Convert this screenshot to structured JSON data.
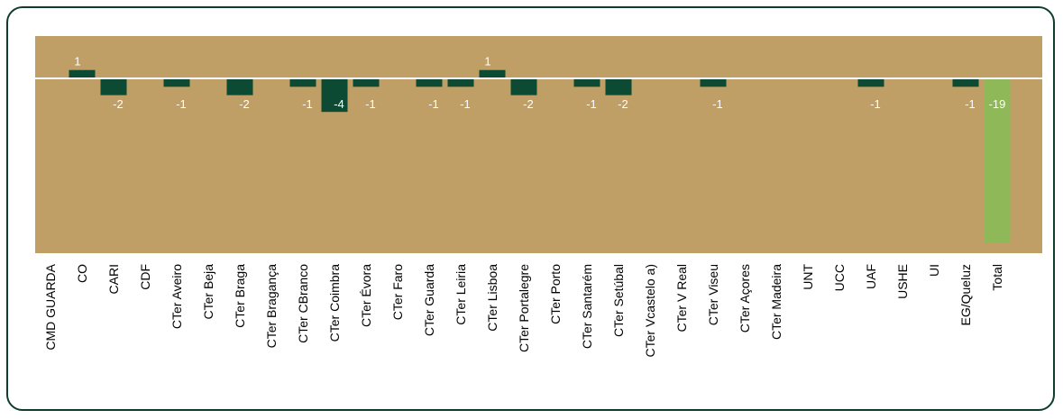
{
  "chart_data": {
    "type": "bar",
    "title": "",
    "xlabel": "",
    "ylabel": "",
    "ylim": [
      -19,
      1
    ],
    "grid": false,
    "legend": "none",
    "categories": [
      "CMD GUARDA",
      "CO",
      "CARI",
      "CDF",
      "CTer Aveiro",
      "CTer Beja",
      "CTer Braga",
      "CTer Bragança",
      "CTer CBranco",
      "CTer Coimbra",
      "CTer Évora",
      "CTer Faro",
      "CTer Guarda",
      "CTer Leiria",
      "CTer Lisboa",
      "CTer Portalegre",
      "CTer Porto",
      "CTer Santarém",
      "CTer Setúbal",
      "CTer Vcastelo a)",
      "CTer V Real",
      "CTer Viseu",
      "CTer Açores",
      "CTer Madeira",
      "UNT",
      "UCC",
      "UAF",
      "USHE",
      "UI",
      "EG/Queluz",
      "Total"
    ],
    "values": [
      null,
      1,
      -2,
      null,
      -1,
      null,
      -2,
      null,
      -1,
      -4,
      -1,
      null,
      -1,
      -1,
      1,
      -2,
      null,
      -1,
      -2,
      null,
      null,
      -1,
      null,
      null,
      null,
      null,
      -1,
      null,
      null,
      -1,
      -19
    ],
    "value_labels": [
      "",
      "1",
      "-2",
      "",
      "-1",
      "",
      "-2",
      "",
      "-1",
      "-4",
      "-1",
      "",
      "-1",
      "-1",
      "1",
      "-2",
      "",
      "-1",
      "-2",
      "",
      "",
      "-1",
      "",
      "",
      "",
      "",
      "-1",
      "",
      "",
      "-1",
      "-19"
    ],
    "colors": {
      "plot_background": "#bf9f65",
      "bar": "#0d4a34",
      "total_bar": "#8fb858",
      "zero_line": "#ffffff",
      "frame_border": "#0f3d2c"
    }
  }
}
